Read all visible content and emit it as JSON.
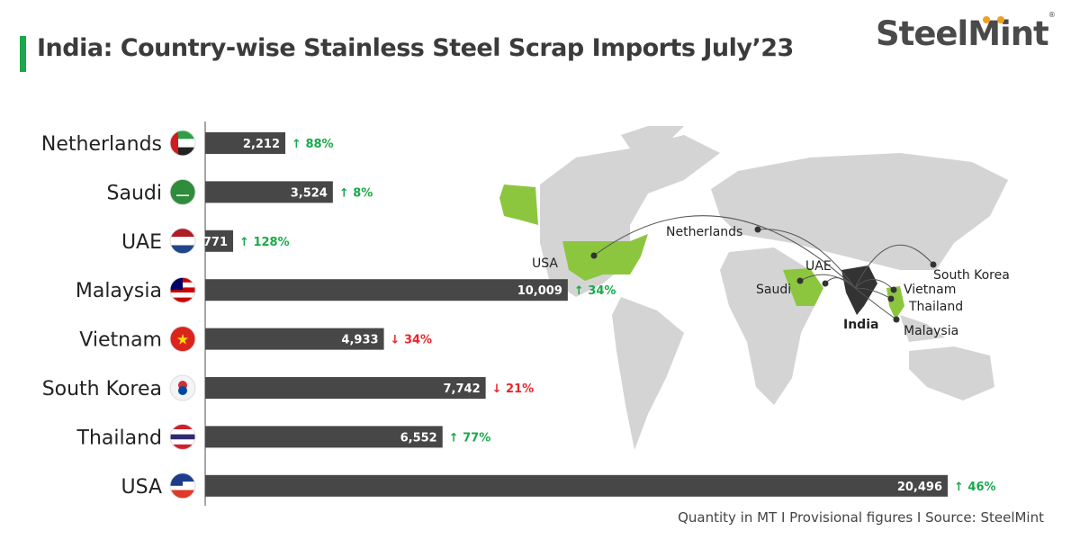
{
  "title": "India: Country-wise Stainless Steel Scrap Imports July’23",
  "logo": "SteelMint",
  "footer": "Quantity in MT  I  Provisional figures  I   Source: SteelMint",
  "colors": {
    "bar": "#474747",
    "up": "#18a94a",
    "down": "#e8262a",
    "highlight": "#8cc63f",
    "land": "#d4d4d4",
    "india": "#333333"
  },
  "chart_data": {
    "type": "bar",
    "orientation": "horizontal",
    "categories": [
      "Netherlands",
      "Saudi",
      "UAE",
      "Malaysia",
      "Vietnam",
      "South Korea",
      "Thailand",
      "USA"
    ],
    "values": [
      2212,
      3524,
      771,
      10009,
      4933,
      7742,
      6552,
      20496
    ],
    "value_labels": [
      "2,212",
      "3,524",
      "771",
      "10,009",
      "4,933",
      "7,742",
      "6,552",
      "20,496"
    ],
    "changes": [
      {
        "dir": "up",
        "label": "88%"
      },
      {
        "dir": "up",
        "label": "8%"
      },
      {
        "dir": "up",
        "label": "128%"
      },
      {
        "dir": "up",
        "label": "34%"
      },
      {
        "dir": "down",
        "label": "34%"
      },
      {
        "dir": "down",
        "label": "21%"
      },
      {
        "dir": "up",
        "label": "77%"
      },
      {
        "dir": "up",
        "label": "46%"
      }
    ],
    "flags": [
      "uae-flag",
      "saudi-flag",
      "netherlands-flag",
      "malaysia-flag",
      "vietnam-flag",
      "south-korea-flag",
      "thailand-flag",
      "usa-flag"
    ],
    "xlim": [
      0,
      20496
    ]
  },
  "map": {
    "labels": [
      "USA",
      "Netherlands",
      "UAE",
      "Saudi",
      "India",
      "Vietnam",
      "Thailand",
      "Malaysia",
      "South Korea"
    ]
  }
}
